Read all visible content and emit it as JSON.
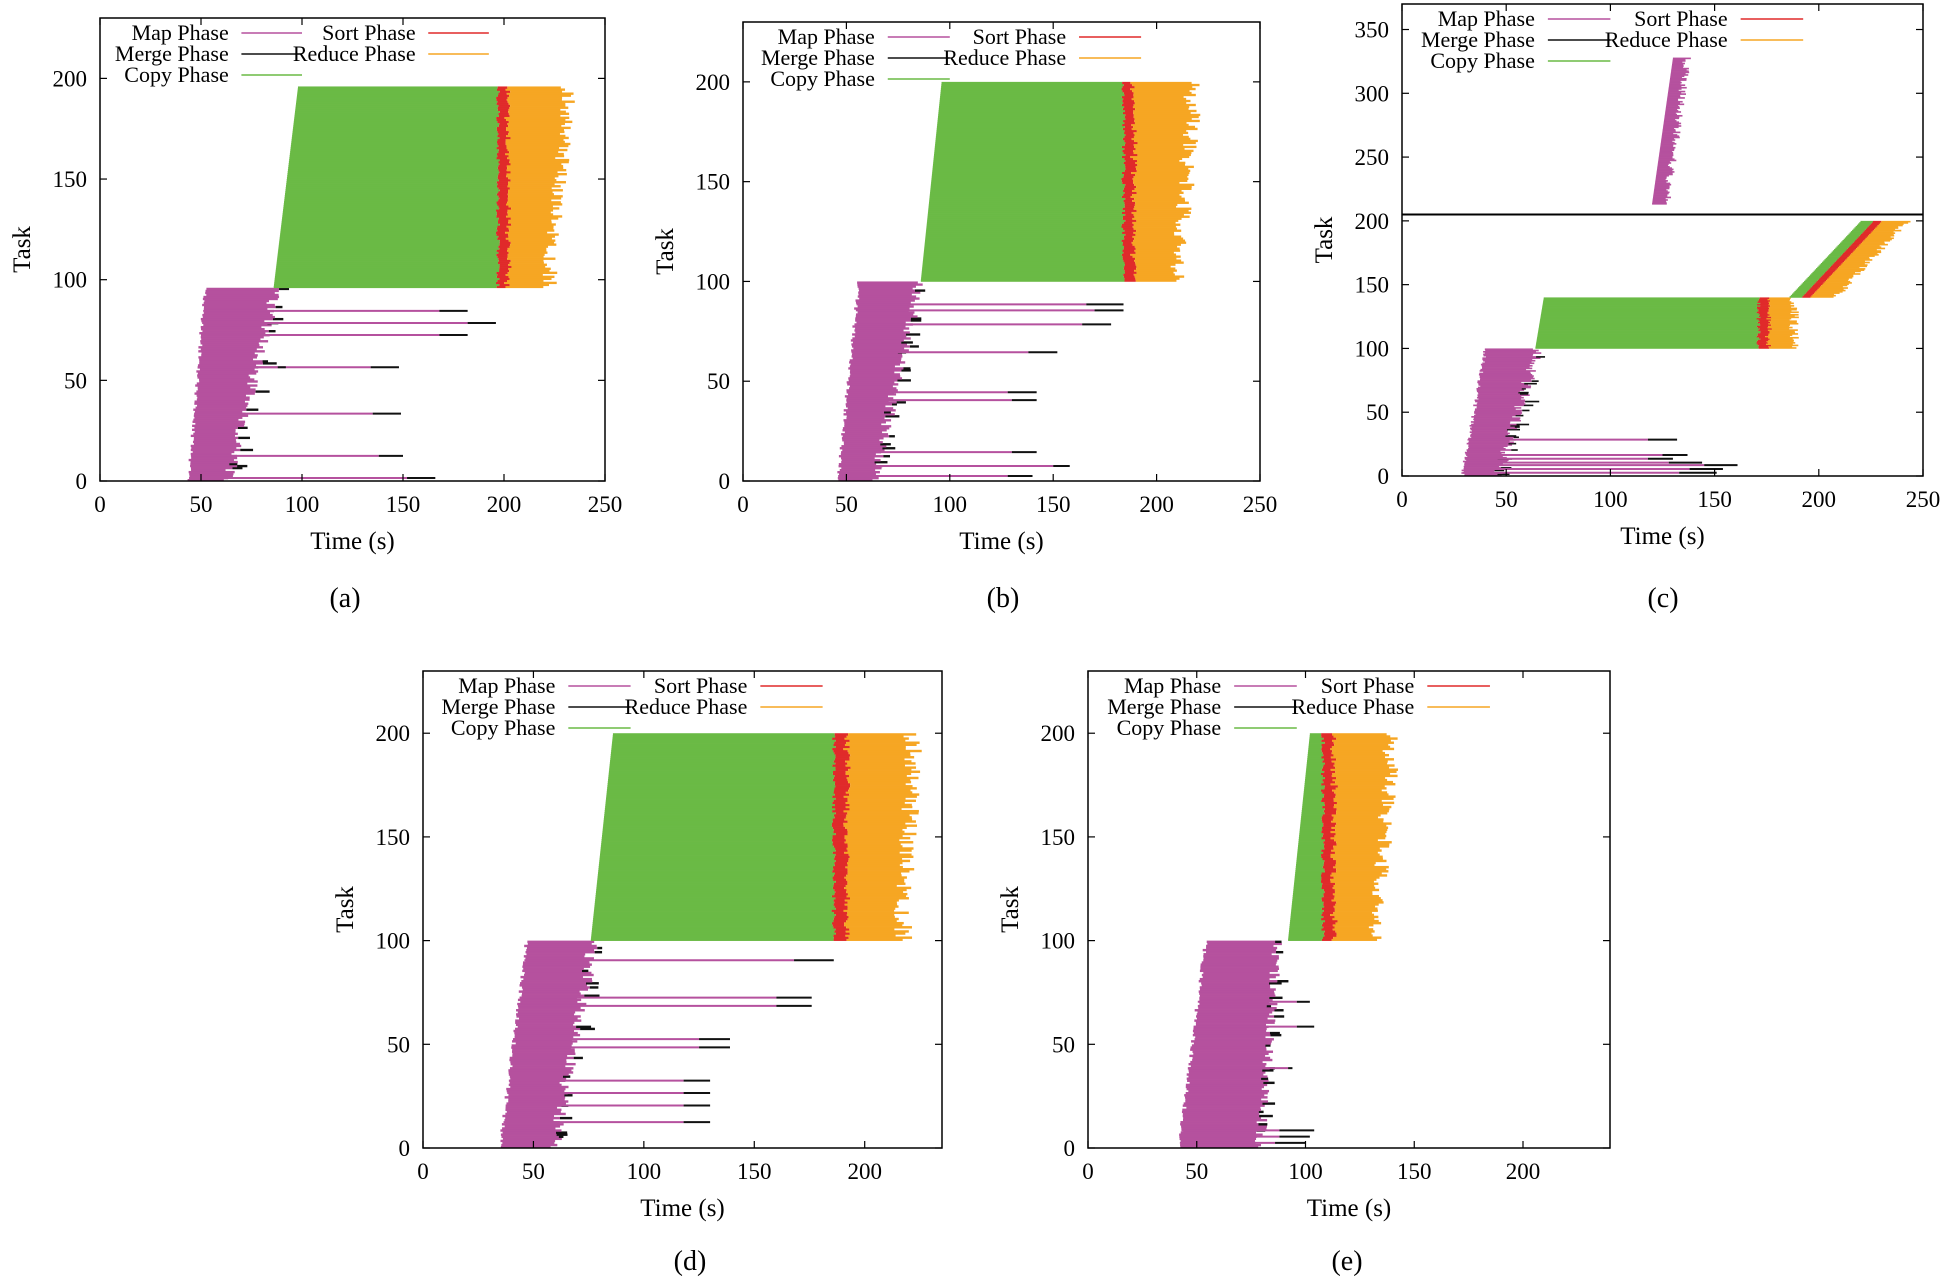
{
  "legend_order": [
    "map",
    "merge",
    "copy",
    "sort",
    "reduce"
  ],
  "phases": {
    "map": {
      "label": "Map Phase",
      "color": "#b5519e"
    },
    "merge": {
      "label": "Merge Phase",
      "color": "#111111"
    },
    "copy": {
      "label": "Copy Phase",
      "color": "#6aba45"
    },
    "sort": {
      "label": "Sort Phase",
      "color": "#e02a2a"
    },
    "reduce": {
      "label": "Reduce Phase",
      "color": "#f6a623"
    }
  },
  "chart_data": [
    {
      "type": "gantt",
      "caption": "(a)",
      "xlabel": "Time (s)",
      "ylabel": "Task",
      "xlim": [
        0,
        250
      ],
      "ylim": [
        0,
        230
      ],
      "xticks": [
        0,
        50,
        100,
        150,
        200,
        250
      ],
      "yticks": [
        0,
        50,
        100,
        150,
        200
      ],
      "map": {
        "tasks": 96,
        "start_first": 44,
        "start_last": 52,
        "end_first": 62,
        "end_last": 86,
        "jitter": 6,
        "stragglers": [
          {
            "task": 1,
            "end": 152,
            "merge": 14
          },
          {
            "task": 12,
            "end": 138,
            "merge": 12
          },
          {
            "task": 33,
            "end": 135,
            "merge": 14
          },
          {
            "task": 56,
            "end": 134,
            "merge": 14
          },
          {
            "task": 56,
            "end": 88,
            "merge": 4
          },
          {
            "task": 72,
            "end": 168,
            "merge": 14
          },
          {
            "task": 78,
            "end": 182,
            "merge": 14
          },
          {
            "task": 84,
            "end": 168,
            "merge": 14
          }
        ]
      },
      "reduce": {
        "tasks": 100,
        "offset": 96,
        "copy_start_first": 86,
        "copy_start_last": 98,
        "copy_end": 197,
        "sort_len": 4,
        "reduce_end_first": 222,
        "reduce_end_last": 232,
        "jitter": 8
      }
    },
    {
      "type": "gantt",
      "caption": "(b)",
      "xlabel": "Time (s)",
      "ylabel": "Task",
      "xlim": [
        0,
        250
      ],
      "ylim": [
        0,
        230
      ],
      "xticks": [
        0,
        50,
        100,
        150,
        200,
        250
      ],
      "yticks": [
        0,
        50,
        100,
        150,
        200
      ],
      "map": {
        "tasks": 100,
        "start_first": 46,
        "start_last": 56,
        "end_first": 62,
        "end_last": 84,
        "jitter": 6,
        "stragglers": [
          {
            "task": 2,
            "end": 128,
            "merge": 12
          },
          {
            "task": 7,
            "end": 150,
            "merge": 8
          },
          {
            "task": 14,
            "end": 130,
            "merge": 12
          },
          {
            "task": 40,
            "end": 130,
            "merge": 12
          },
          {
            "task": 44,
            "end": 128,
            "merge": 14
          },
          {
            "task": 64,
            "end": 138,
            "merge": 14
          },
          {
            "task": 78,
            "end": 164,
            "merge": 14
          },
          {
            "task": 85,
            "end": 170,
            "merge": 14
          },
          {
            "task": 88,
            "end": 166,
            "merge": 18
          }
        ]
      },
      "reduce": {
        "tasks": 100,
        "offset": 100,
        "copy_start_first": 86,
        "copy_start_last": 96,
        "copy_end": 184,
        "sort_len": 4,
        "reduce_end_first": 210,
        "reduce_end_last": 218,
        "jitter": 9
      }
    },
    {
      "type": "gantt",
      "caption": "(c)",
      "xlabel": "Time (s)",
      "ylabel": "Task",
      "xlim": [
        0,
        250
      ],
      "ylim": [
        0,
        370
      ],
      "break_task": 205,
      "xticks": [
        0,
        50,
        100,
        150,
        200,
        250
      ],
      "yticks": [
        0,
        50,
        100,
        150,
        200,
        250,
        300,
        350
      ],
      "map": {
        "tasks": 100,
        "start_first": 29,
        "start_last": 40,
        "end_first": 45,
        "end_last": 64,
        "jitter": 6,
        "stragglers": [
          {
            "task": 2,
            "end": 133,
            "merge": 18
          },
          {
            "task": 5,
            "end": 138,
            "merge": 16
          },
          {
            "task": 8,
            "end": 145,
            "merge": 16
          },
          {
            "task": 10,
            "end": 128,
            "merge": 16
          },
          {
            "task": 13,
            "end": 118,
            "merge": 12
          },
          {
            "task": 16,
            "end": 125,
            "merge": 12
          },
          {
            "task": 28,
            "end": 118,
            "merge": 14
          }
        ]
      },
      "reduce": {
        "tasks": 40,
        "offset": 100,
        "copy_start_first": 64,
        "copy_start_last": 68,
        "copy_end": 171,
        "sort_len": 4,
        "reduce_end_first": 188,
        "reduce_end_last": 188,
        "jitter": 5
      },
      "reduce2": {
        "tasks": 60,
        "offset": 140,
        "copy_start_first": 186,
        "copy_start_last": 220,
        "copy_len": 6,
        "sort_len": 4,
        "reduce_len": 12,
        "jitter": 4
      },
      "map2": {
        "tasks": 115,
        "offset": 213,
        "start_first": 120,
        "start_last": 130,
        "end_first": 126,
        "end_last": 136,
        "jitter": 4
      }
    },
    {
      "type": "gantt",
      "caption": "(d)",
      "xlabel": "Time (s)",
      "ylabel": "Task",
      "xlim": [
        0,
        235
      ],
      "ylim": [
        0,
        230
      ],
      "xticks": [
        0,
        50,
        100,
        150,
        200
      ],
      "yticks": [
        0,
        50,
        100,
        150,
        200
      ],
      "map": {
        "tasks": 100,
        "start_first": 35,
        "start_last": 47,
        "end_first": 58,
        "end_last": 76,
        "jitter": 6,
        "stragglers": [
          {
            "task": 12,
            "end": 118,
            "merge": 12
          },
          {
            "task": 20,
            "end": 118,
            "merge": 12
          },
          {
            "task": 26,
            "end": 118,
            "merge": 12
          },
          {
            "task": 32,
            "end": 118,
            "merge": 12
          },
          {
            "task": 48,
            "end": 125,
            "merge": 14
          },
          {
            "task": 52,
            "end": 125,
            "merge": 14
          },
          {
            "task": 68,
            "end": 160,
            "merge": 16
          },
          {
            "task": 72,
            "end": 160,
            "merge": 16
          },
          {
            "task": 90,
            "end": 168,
            "merge": 18
          }
        ]
      },
      "reduce": {
        "tasks": 100,
        "offset": 100,
        "copy_start_first": 76,
        "copy_start_last": 86,
        "copy_end": 186,
        "sort_len": 5,
        "reduce_end_first": 217,
        "reduce_end_last": 222,
        "jitter": 9
      }
    },
    {
      "type": "gantt",
      "caption": "(e)",
      "xlabel": "Time (s)",
      "ylabel": "Task",
      "xlim": [
        0,
        240
      ],
      "ylim": [
        0,
        230
      ],
      "xticks": [
        0,
        50,
        100,
        150,
        200
      ],
      "yticks": [
        0,
        50,
        100,
        150,
        200
      ],
      "map": {
        "tasks": 100,
        "start_first": 42,
        "start_last": 54,
        "end_first": 78,
        "end_last": 86,
        "jitter": 5,
        "stragglers": [
          {
            "task": 2,
            "end": 86,
            "merge": 14
          },
          {
            "task": 5,
            "end": 88,
            "merge": 14
          },
          {
            "task": 8,
            "end": 88,
            "merge": 16
          },
          {
            "task": 38,
            "end": 92,
            "merge": 2
          },
          {
            "task": 58,
            "end": 96,
            "merge": 8
          },
          {
            "task": 70,
            "end": 96,
            "merge": 6
          }
        ]
      },
      "reduce": {
        "tasks": 100,
        "offset": 100,
        "copy_start_first": 92,
        "copy_start_last": 102,
        "copy_end": 108,
        "sort_len": 4,
        "reduce_end_first": 132,
        "reduce_end_last": 140,
        "jitter": 8
      }
    }
  ]
}
